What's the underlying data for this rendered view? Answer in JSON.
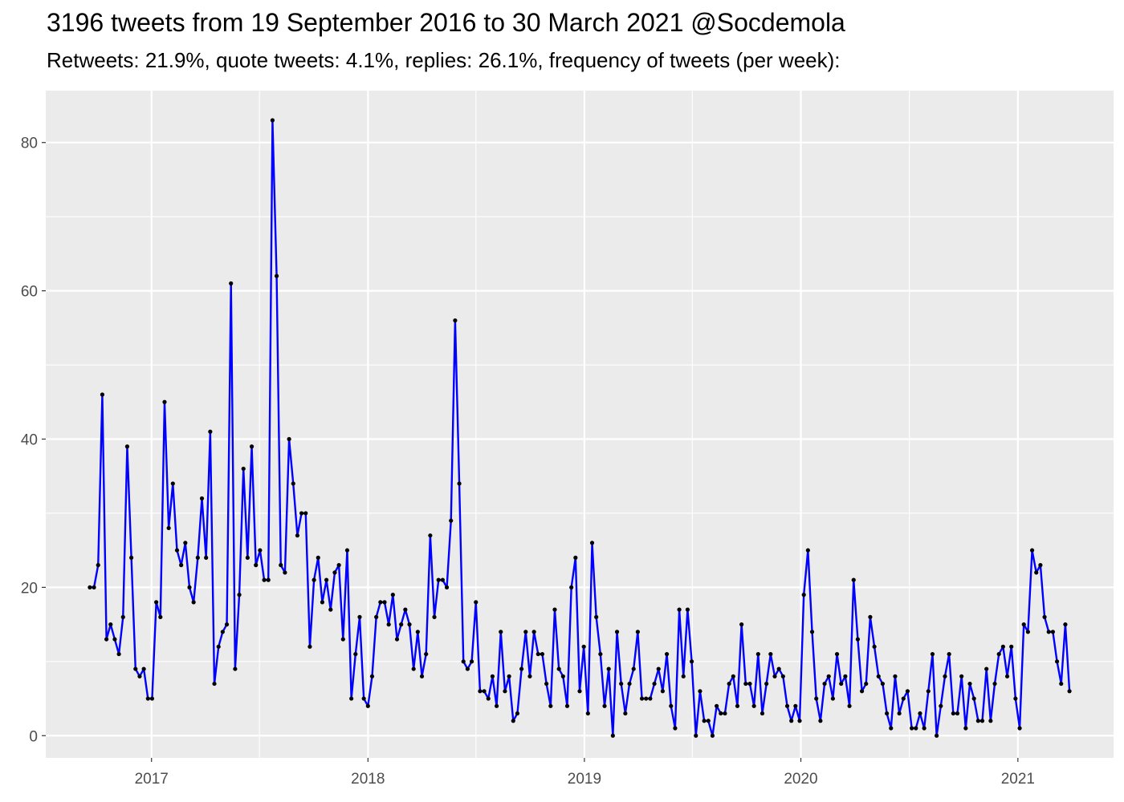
{
  "title": "3196 tweets from 19 September 2016 to 30 March 2021 @Socdemola",
  "subtitle": "Retweets: 21.9%, quote tweets: 4.1%, replies: 26.1%, frequency of tweets (per week):",
  "chart_data": {
    "type": "line",
    "x_unit": "weeks, starting week of 19 September 2016",
    "start_date": "2016-09-19",
    "x_tick_labels": [
      "2017",
      "2018",
      "2019",
      "2020",
      "2021"
    ],
    "y_tick_labels": [
      "0",
      "20",
      "40",
      "60",
      "80"
    ],
    "ylim": [
      -3,
      87
    ],
    "grid": true,
    "background": "#ebebeb",
    "line_color": "#0000ff",
    "point_color": "#000000",
    "series": [
      {
        "values": [
          20,
          20,
          23,
          46,
          13,
          15,
          13,
          11,
          16,
          39,
          24,
          9,
          8,
          9,
          5,
          5,
          18,
          16,
          45,
          28,
          34,
          25,
          23,
          26,
          20,
          18,
          24,
          32,
          24,
          41,
          7,
          12,
          14,
          15,
          61,
          9,
          19,
          36,
          24,
          39,
          23,
          25,
          21,
          21,
          83,
          62,
          23,
          22,
          40,
          34,
          27,
          30,
          30,
          12,
          21,
          24,
          18,
          21,
          17,
          22,
          23,
          13,
          25,
          5,
          11,
          16,
          5,
          4,
          8,
          16,
          18,
          18,
          15,
          19,
          13,
          15,
          17,
          15,
          9,
          14,
          8,
          11,
          27,
          16,
          21,
          21,
          20,
          29,
          56,
          34,
          10,
          9,
          10,
          18,
          6,
          6,
          5,
          8,
          4,
          14,
          6,
          8,
          2,
          3,
          9,
          14,
          8,
          14,
          11,
          11,
          7,
          4,
          17,
          9,
          8,
          4,
          20,
          24,
          6,
          12,
          3,
          26,
          16,
          11,
          4,
          9,
          0,
          14,
          7,
          3,
          7,
          9,
          14,
          5,
          5,
          5,
          7,
          9,
          6,
          11,
          4,
          1,
          17,
          8,
          17,
          10,
          0,
          6,
          2,
          2,
          0,
          4,
          3,
          3,
          7,
          8,
          4,
          15,
          7,
          7,
          4,
          11,
          3,
          7,
          11,
          8,
          9,
          8,
          4,
          2,
          4,
          2,
          19,
          25,
          14,
          5,
          2,
          7,
          8,
          5,
          11,
          7,
          8,
          4,
          21,
          13,
          6,
          7,
          16,
          12,
          8,
          7,
          3,
          1,
          8,
          3,
          5,
          6,
          1,
          1,
          3,
          1,
          6,
          11,
          0,
          4,
          8,
          11,
          3,
          3,
          8,
          1,
          7,
          5,
          2,
          2,
          9,
          2,
          7,
          11,
          12,
          8,
          12,
          5,
          1,
          15,
          14,
          25,
          22,
          23,
          16,
          14,
          14,
          10,
          7,
          15,
          6
        ]
      }
    ]
  }
}
